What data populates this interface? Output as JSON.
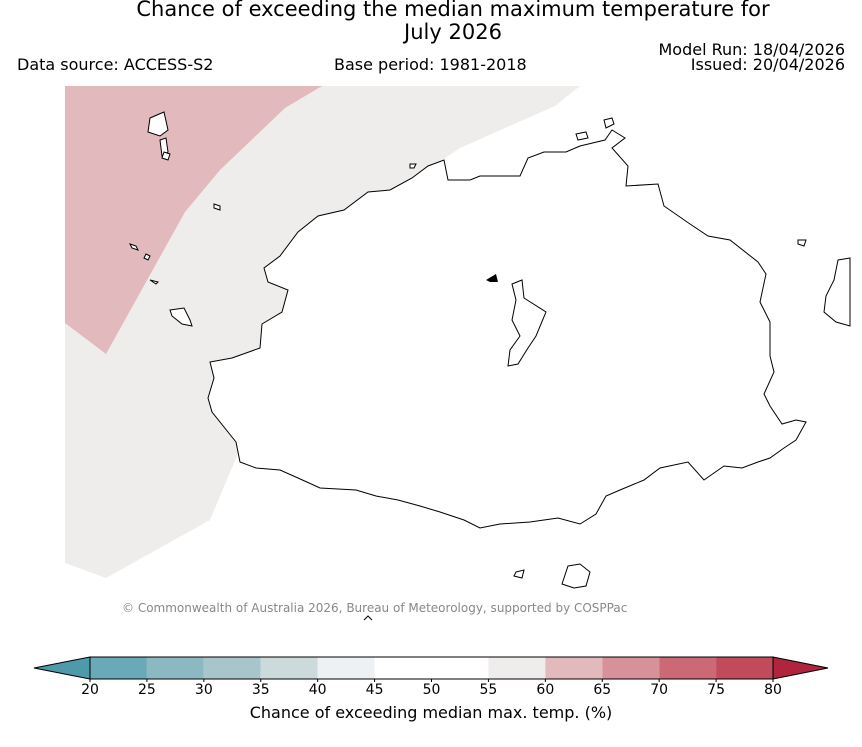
{
  "title": {
    "line1": "Chance of exceeding the median maximum temperature for",
    "line2": "July 2026"
  },
  "info": {
    "data_source": "Data source: ACCESS-S2",
    "base_period": "Base period: 1981-2018",
    "model_run": "Model Run: 18/04/2026",
    "issued": "Issued: 20/04/2026"
  },
  "map": {
    "region": "Fiji (Viti Levu)",
    "zones": [
      {
        "range": "60-65",
        "color": "#e2babd"
      },
      {
        "range": "55-60",
        "color": "#efedeb"
      },
      {
        "range": "45-55",
        "color": "#ffffff"
      }
    ],
    "copyright": "© Commonwealth of Australia 2026, Bureau of Meteorology, supported by COSPPac"
  },
  "colorbar": {
    "ticks": [
      "20",
      "25",
      "30",
      "35",
      "40",
      "45",
      "50",
      "55",
      "60",
      "65",
      "70",
      "75",
      "80"
    ],
    "colors": [
      "#6aaab8",
      "#8cb8c2",
      "#a7c5ca",
      "#ccdadb",
      "#eef1f3",
      "#ffffff",
      "#ffffff",
      "#efedeb",
      "#e2babd",
      "#d79199",
      "#cb6a76",
      "#c14a5b"
    ],
    "under_color": "#4e9aab",
    "over_color": "#b0243e",
    "label": "Chance of exceeding median max. temp. (%)"
  }
}
